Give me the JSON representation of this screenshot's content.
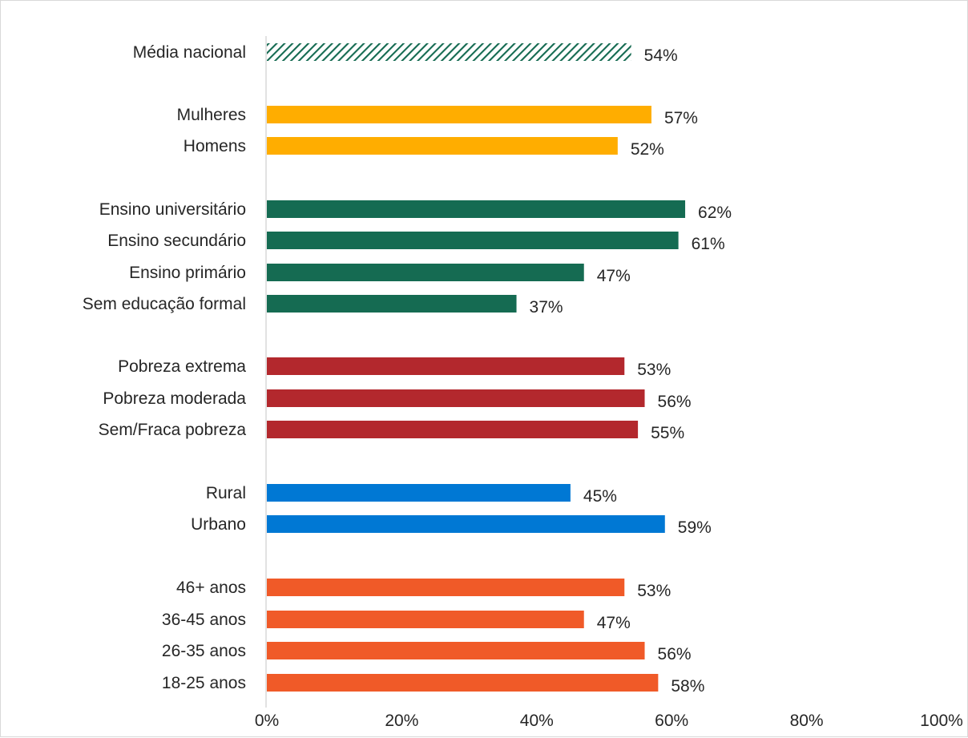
{
  "chart_data": {
    "type": "bar",
    "orientation": "horizontal",
    "categories": [
      "Média nacional",
      "Mulheres",
      "Homens",
      "Ensino universitário",
      "Ensino secundário",
      "Ensino primário",
      "Sem educação formal",
      "Pobreza extrema",
      "Pobreza moderada",
      "Sem/Fraca pobreza",
      "Rural",
      "Urbano",
      "46+ anos",
      "36-45 anos",
      "26-35 anos",
      "18-25 anos"
    ],
    "values": [
      54,
      57,
      52,
      62,
      61,
      47,
      37,
      53,
      56,
      55,
      45,
      59,
      53,
      47,
      56,
      58
    ],
    "value_labels": [
      "54%",
      "57%",
      "52%",
      "62%",
      "61%",
      "47%",
      "37%",
      "53%",
      "56%",
      "55%",
      "45%",
      "59%",
      "53%",
      "47%",
      "56%",
      "58%"
    ],
    "groups": [
      {
        "items": [
          0
        ],
        "color": "#156b52",
        "pattern": "hatched"
      },
      {
        "items": [
          1,
          2
        ],
        "color": "#ffad00"
      },
      {
        "items": [
          3,
          4,
          5,
          6
        ],
        "color": "#156b52"
      },
      {
        "items": [
          7,
          8,
          9
        ],
        "color": "#b3282d"
      },
      {
        "items": [
          10,
          11
        ],
        "color": "#0078d4"
      },
      {
        "items": [
          12,
          13,
          14,
          15
        ],
        "color": "#f05a28"
      }
    ],
    "xlim": [
      0,
      100
    ],
    "x_ticks": [
      "0%",
      "20%",
      "40%",
      "60%",
      "80%",
      "100%"
    ],
    "title": "",
    "xlabel": "",
    "ylabel": "",
    "grid": false,
    "legend": "none"
  }
}
